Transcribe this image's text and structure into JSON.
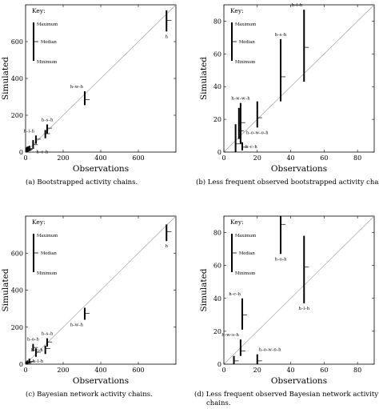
{
  "captions": {
    "a": "(a) Bootstrapped activity chains.",
    "b": "(b) Less frequent observed bootstrapped activity chains",
    "c": "(c) Bayesian network activity chains.",
    "d1": "(d) Less frequent observed Bayesian network activity",
    "d2": "chains."
  },
  "chart_data": [
    {
      "type": "range",
      "panel": "a",
      "xlabel": "Observations",
      "ylabel": "Simulated",
      "xlim": [
        0,
        800
      ],
      "ylim": [
        0,
        800
      ],
      "xticks": [
        0,
        200,
        400,
        600
      ],
      "yticks": [
        0,
        200,
        400,
        600
      ],
      "diagonal": true,
      "key": {
        "title": "Key:",
        "max": "Maximum",
        "median": "Median",
        "min": "Minimum"
      },
      "points": [
        {
          "x": 750,
          "min": 655,
          "median": 715,
          "max": 770,
          "label": "h",
          "label_pos": "below"
        },
        {
          "x": 315,
          "min": 255,
          "median": 285,
          "max": 330,
          "label": "h–w–h",
          "label_pos": "above-left"
        },
        {
          "x": 115,
          "min": 100,
          "median": 130,
          "max": 150,
          "label": "h–s–h",
          "label_pos": "above"
        },
        {
          "x": 105,
          "min": 75,
          "median": 100,
          "max": 120,
          "label": "",
          "label_pos": ""
        },
        {
          "x": 55,
          "min": 45,
          "median": 70,
          "max": 90,
          "label": "h–l–h",
          "label_pos": "above-left"
        },
        {
          "x": 40,
          "min": 20,
          "median": 40,
          "max": 65,
          "label": "h–c–h",
          "label_pos": "below-right"
        },
        {
          "x": 20,
          "min": 5,
          "median": 20,
          "max": 35,
          "label": "",
          "label_pos": ""
        },
        {
          "x": 12,
          "min": 0,
          "median": 15,
          "max": 30,
          "label": "",
          "label_pos": ""
        },
        {
          "x": 8,
          "min": 0,
          "median": 12,
          "max": 28,
          "label": "",
          "label_pos": ""
        },
        {
          "x": 5,
          "min": 0,
          "median": 10,
          "max": 25,
          "label": "",
          "label_pos": ""
        }
      ]
    },
    {
      "type": "range",
      "panel": "b",
      "xlabel": "Observations",
      "ylabel": "Simulated",
      "xlim": [
        0,
        90
      ],
      "ylim": [
        0,
        90
      ],
      "xticks": [
        0,
        20,
        40,
        60,
        80
      ],
      "yticks": [
        0,
        20,
        40,
        60,
        80
      ],
      "diagonal": true,
      "key": {
        "title": "Key:",
        "max": "Maximum",
        "median": "Median",
        "min": "Minimum"
      },
      "points": [
        {
          "x": 48,
          "min": 43,
          "median": 64,
          "max": 87,
          "label": "h–l–h",
          "label_pos": "above-left"
        },
        {
          "x": 34,
          "min": 31,
          "median": 46,
          "max": 69,
          "label": "h–s–h",
          "label_pos": "above"
        },
        {
          "x": 20,
          "min": 15,
          "median": 21,
          "max": 31,
          "label": "h–o–w–o–h",
          "label_pos": "below"
        },
        {
          "x": 10,
          "min": 5,
          "median": 18,
          "max": 30,
          "label": "h–w–w–h",
          "label_pos": "above"
        },
        {
          "x": 9,
          "min": 8,
          "median": 13,
          "max": 27,
          "label": "",
          "label_pos": ""
        },
        {
          "x": 7,
          "min": 0,
          "median": 5,
          "max": 17,
          "label": "",
          "label_pos": ""
        },
        {
          "x": 11,
          "min": 1,
          "median": 3,
          "max": 6,
          "label": "h–c–h",
          "label_pos": "right"
        }
      ]
    },
    {
      "type": "range",
      "panel": "c",
      "xlabel": "Observations",
      "ylabel": "Simulated",
      "xlim": [
        0,
        800
      ],
      "ylim": [
        0,
        800
      ],
      "xticks": [
        0,
        200,
        400,
        600
      ],
      "yticks": [
        0,
        200,
        400,
        600
      ],
      "diagonal": true,
      "key": {
        "title": "Key:",
        "max": "Maximum",
        "median": "Median",
        "min": "Minimum"
      },
      "points": [
        {
          "x": 750,
          "min": 665,
          "median": 715,
          "max": 755,
          "label": "h",
          "label_pos": "below"
        },
        {
          "x": 315,
          "min": 240,
          "median": 275,
          "max": 305,
          "label": "h–w–h",
          "label_pos": "below-left"
        },
        {
          "x": 115,
          "min": 95,
          "median": 120,
          "max": 140,
          "label": "h–s–h",
          "label_pos": "above"
        },
        {
          "x": 105,
          "min": 55,
          "median": 85,
          "max": 100,
          "label": "h–c–h",
          "label_pos": "left"
        },
        {
          "x": 40,
          "min": 70,
          "median": 90,
          "max": 110,
          "label": "h–o–h",
          "label_pos": "above"
        },
        {
          "x": 55,
          "min": 40,
          "median": 65,
          "max": 85,
          "label": "",
          "label_pos": ""
        },
        {
          "x": 20,
          "min": 5,
          "median": 15,
          "max": 30,
          "label": "h–l–h",
          "label_pos": "right"
        },
        {
          "x": 10,
          "min": 0,
          "median": 10,
          "max": 20,
          "label": "",
          "label_pos": ""
        },
        {
          "x": 5,
          "min": 0,
          "median": 5,
          "max": 15,
          "label": "",
          "label_pos": ""
        }
      ]
    },
    {
      "type": "range",
      "panel": "d",
      "xlabel": "Observations",
      "ylabel": "Simulated",
      "xlim": [
        0,
        90
      ],
      "ylim": [
        0,
        90
      ],
      "xticks": [
        0,
        20,
        40,
        60,
        80
      ],
      "yticks": [
        0,
        20,
        40,
        60,
        80
      ],
      "diagonal": true,
      "key": {
        "title": "Key:",
        "max": "Maximum",
        "median": "Median",
        "min": "Minimum"
      },
      "points": [
        {
          "x": 34,
          "min": 67,
          "median": 85,
          "max": 90,
          "label": "h–o–h",
          "label_pos": "below"
        },
        {
          "x": 48,
          "min": 37,
          "median": 59,
          "max": 78,
          "label": "h–l–h",
          "label_pos": "below"
        },
        {
          "x": 11,
          "min": 21,
          "median": 30,
          "max": 40,
          "label": "h–c–h",
          "label_pos": "above-left"
        },
        {
          "x": 10,
          "min": 5,
          "median": 8,
          "max": 15,
          "label": "h–w–s–h",
          "label_pos": "above-left"
        },
        {
          "x": 20,
          "min": 0,
          "median": 2,
          "max": 6,
          "label": "h–o–w–o–h",
          "label_pos": "above-right"
        },
        {
          "x": 6,
          "min": 0,
          "median": 2,
          "max": 5,
          "label": "",
          "label_pos": ""
        }
      ]
    }
  ]
}
